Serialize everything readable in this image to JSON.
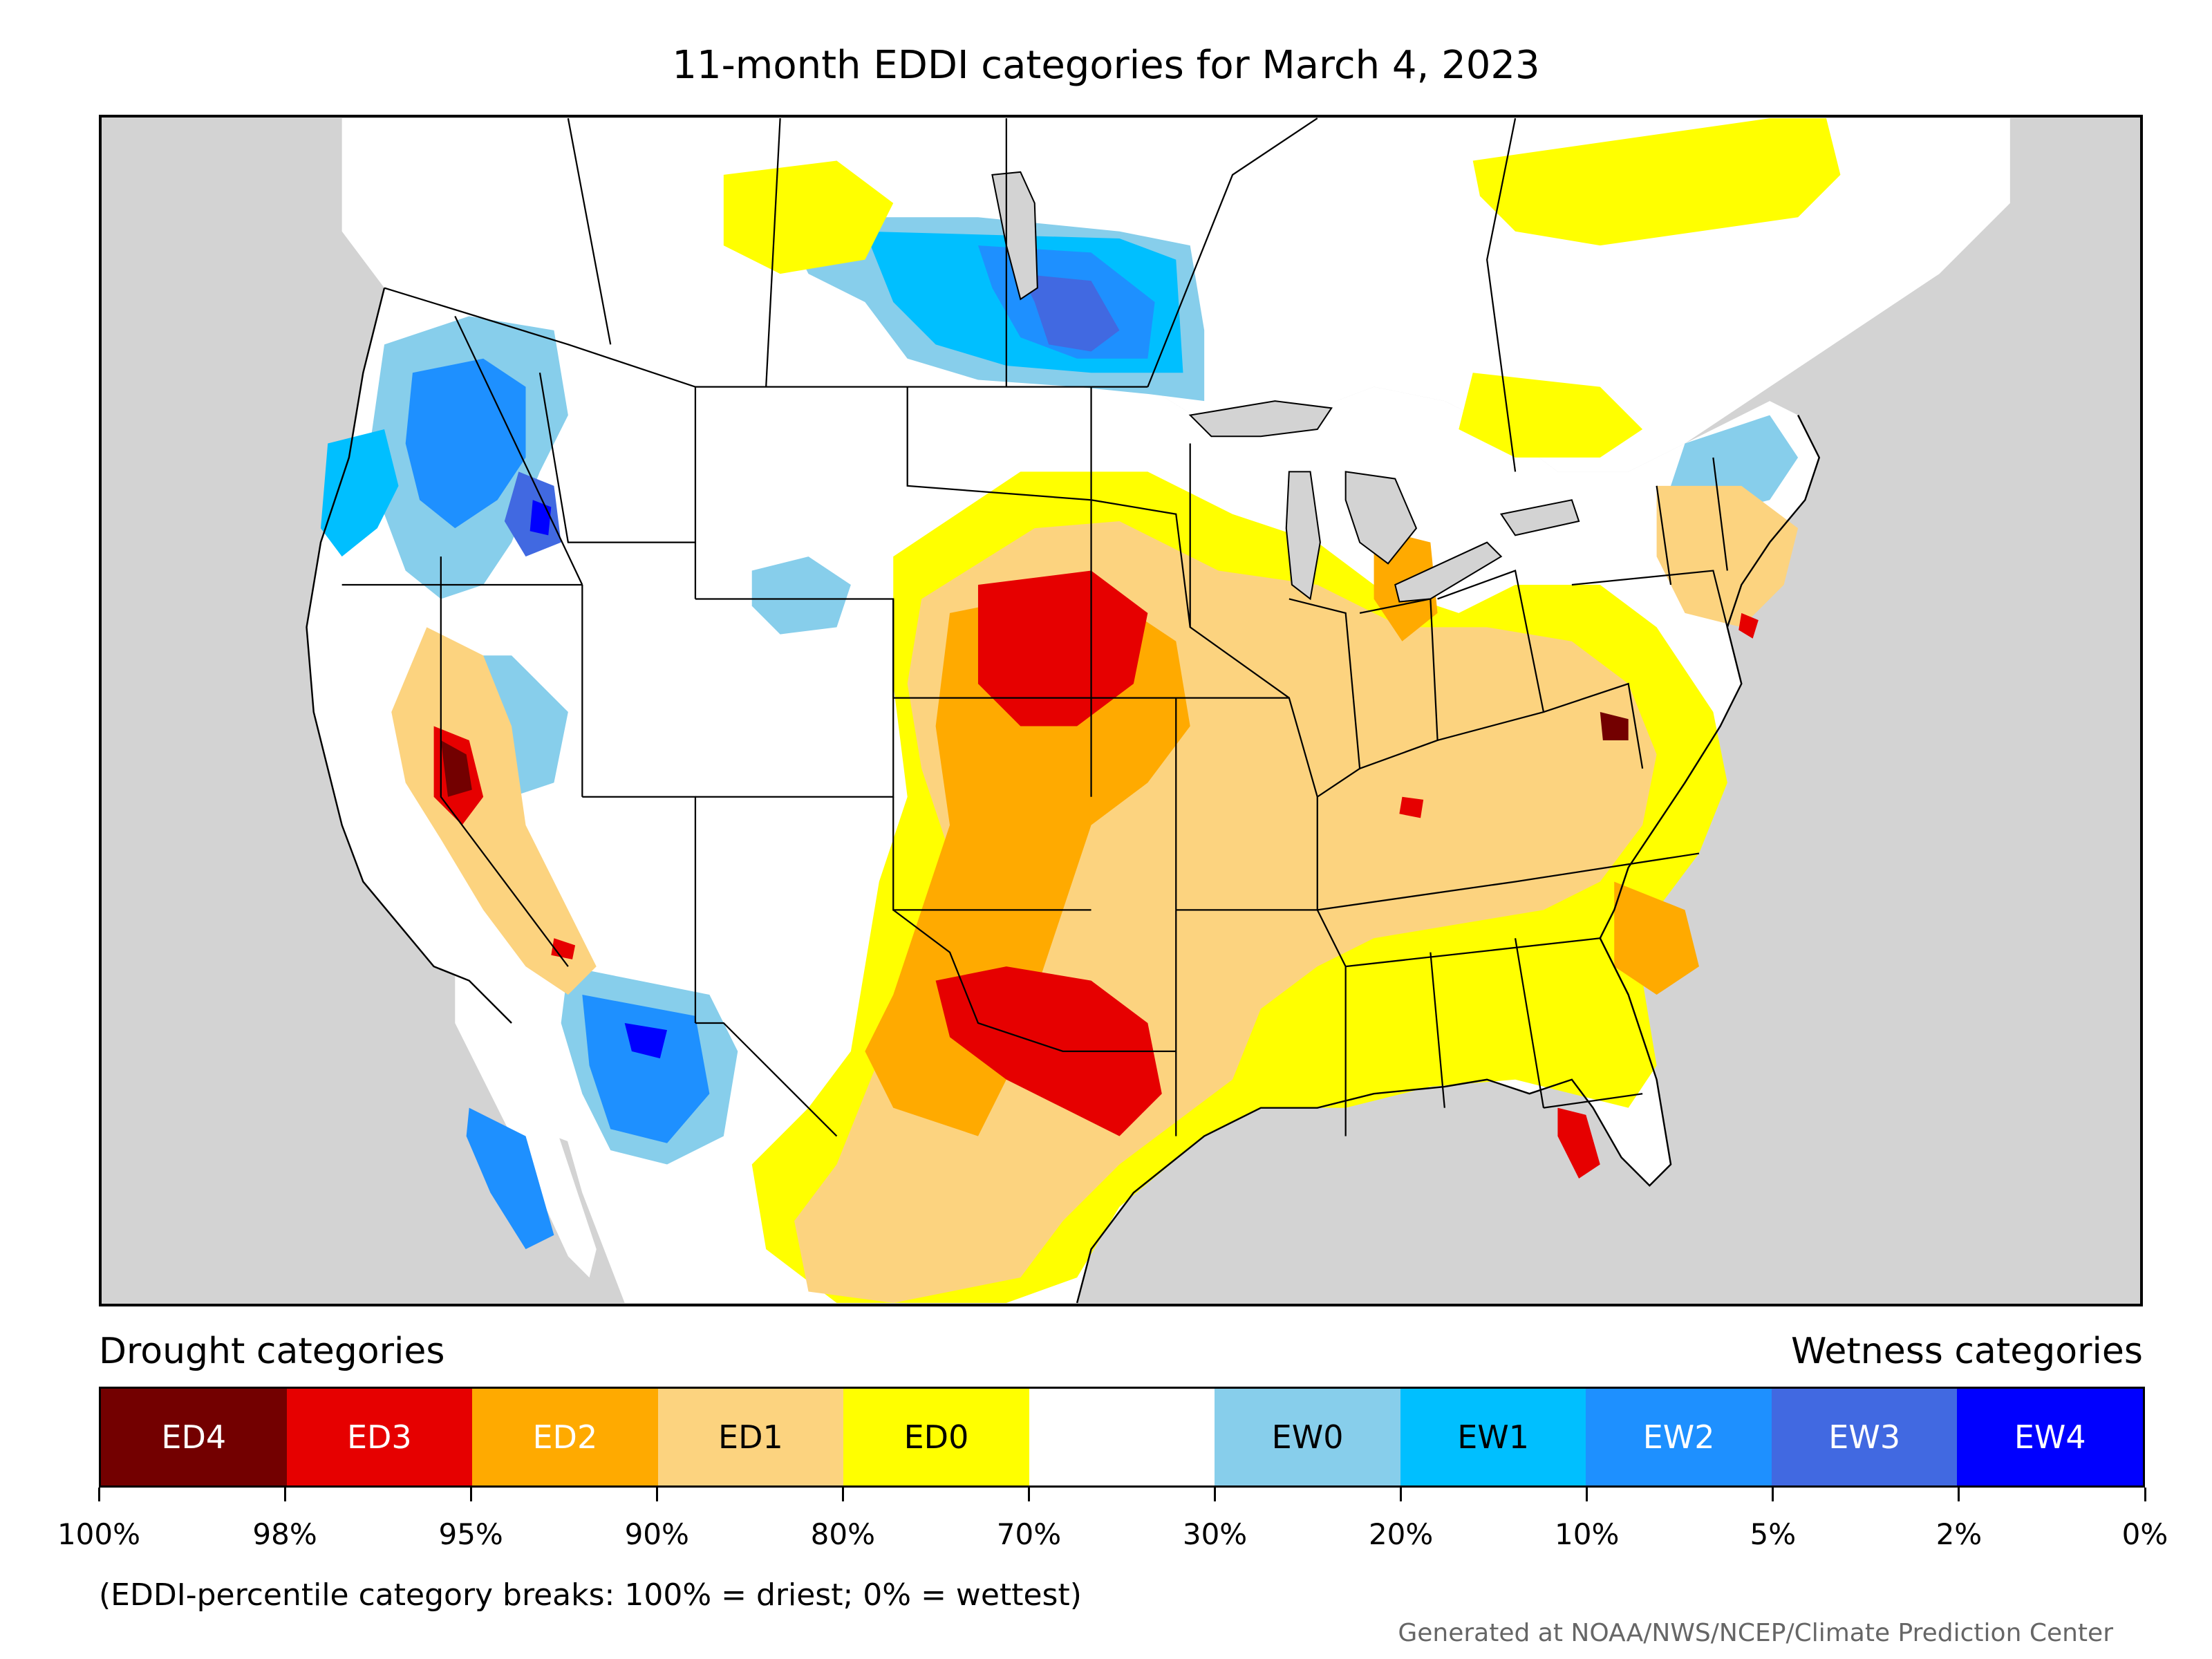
{
  "title": "11-month EDDI categories for March 4, 2023",
  "legend": {
    "drought_title": "Drought categories",
    "wetness_title": "Wetness categories",
    "categories": [
      {
        "label": "ED4",
        "color": "#730000",
        "text_color": "#ffffff"
      },
      {
        "label": "ED3",
        "color": "#e60000",
        "text_color": "#ffffff"
      },
      {
        "label": "ED2",
        "color": "#ffaa00",
        "text_color": "#ffffff"
      },
      {
        "label": "ED1",
        "color": "#fcd37f",
        "text_color": "#000000"
      },
      {
        "label": "ED0",
        "color": "#ffff00",
        "text_color": "#000000"
      },
      {
        "label": "",
        "color": "#ffffff",
        "text_color": "#000000"
      },
      {
        "label": "EW0",
        "color": "#87ceeb",
        "text_color": "#000000"
      },
      {
        "label": "EW1",
        "color": "#00bfff",
        "text_color": "#000000"
      },
      {
        "label": "EW2",
        "color": "#1e90ff",
        "text_color": "#ffffff"
      },
      {
        "label": "EW3",
        "color": "#4169e1",
        "text_color": "#ffffff"
      },
      {
        "label": "EW4",
        "color": "#0000ff",
        "text_color": "#ffffff"
      }
    ],
    "breaks": [
      "100%",
      "98%",
      "95%",
      "90%",
      "80%",
      "70%",
      "30%",
      "20%",
      "10%",
      "5%",
      "2%",
      "0%"
    ]
  },
  "note": "(EDDI-percentile category breaks: 100% = driest; 0% = wettest)",
  "credit": "Generated at NOAA/NWS/NCEP/Climate Prediction Center",
  "map": {
    "background_color": "#d3d3d3",
    "land_color": "#ffffff",
    "border_color": "#000000"
  }
}
